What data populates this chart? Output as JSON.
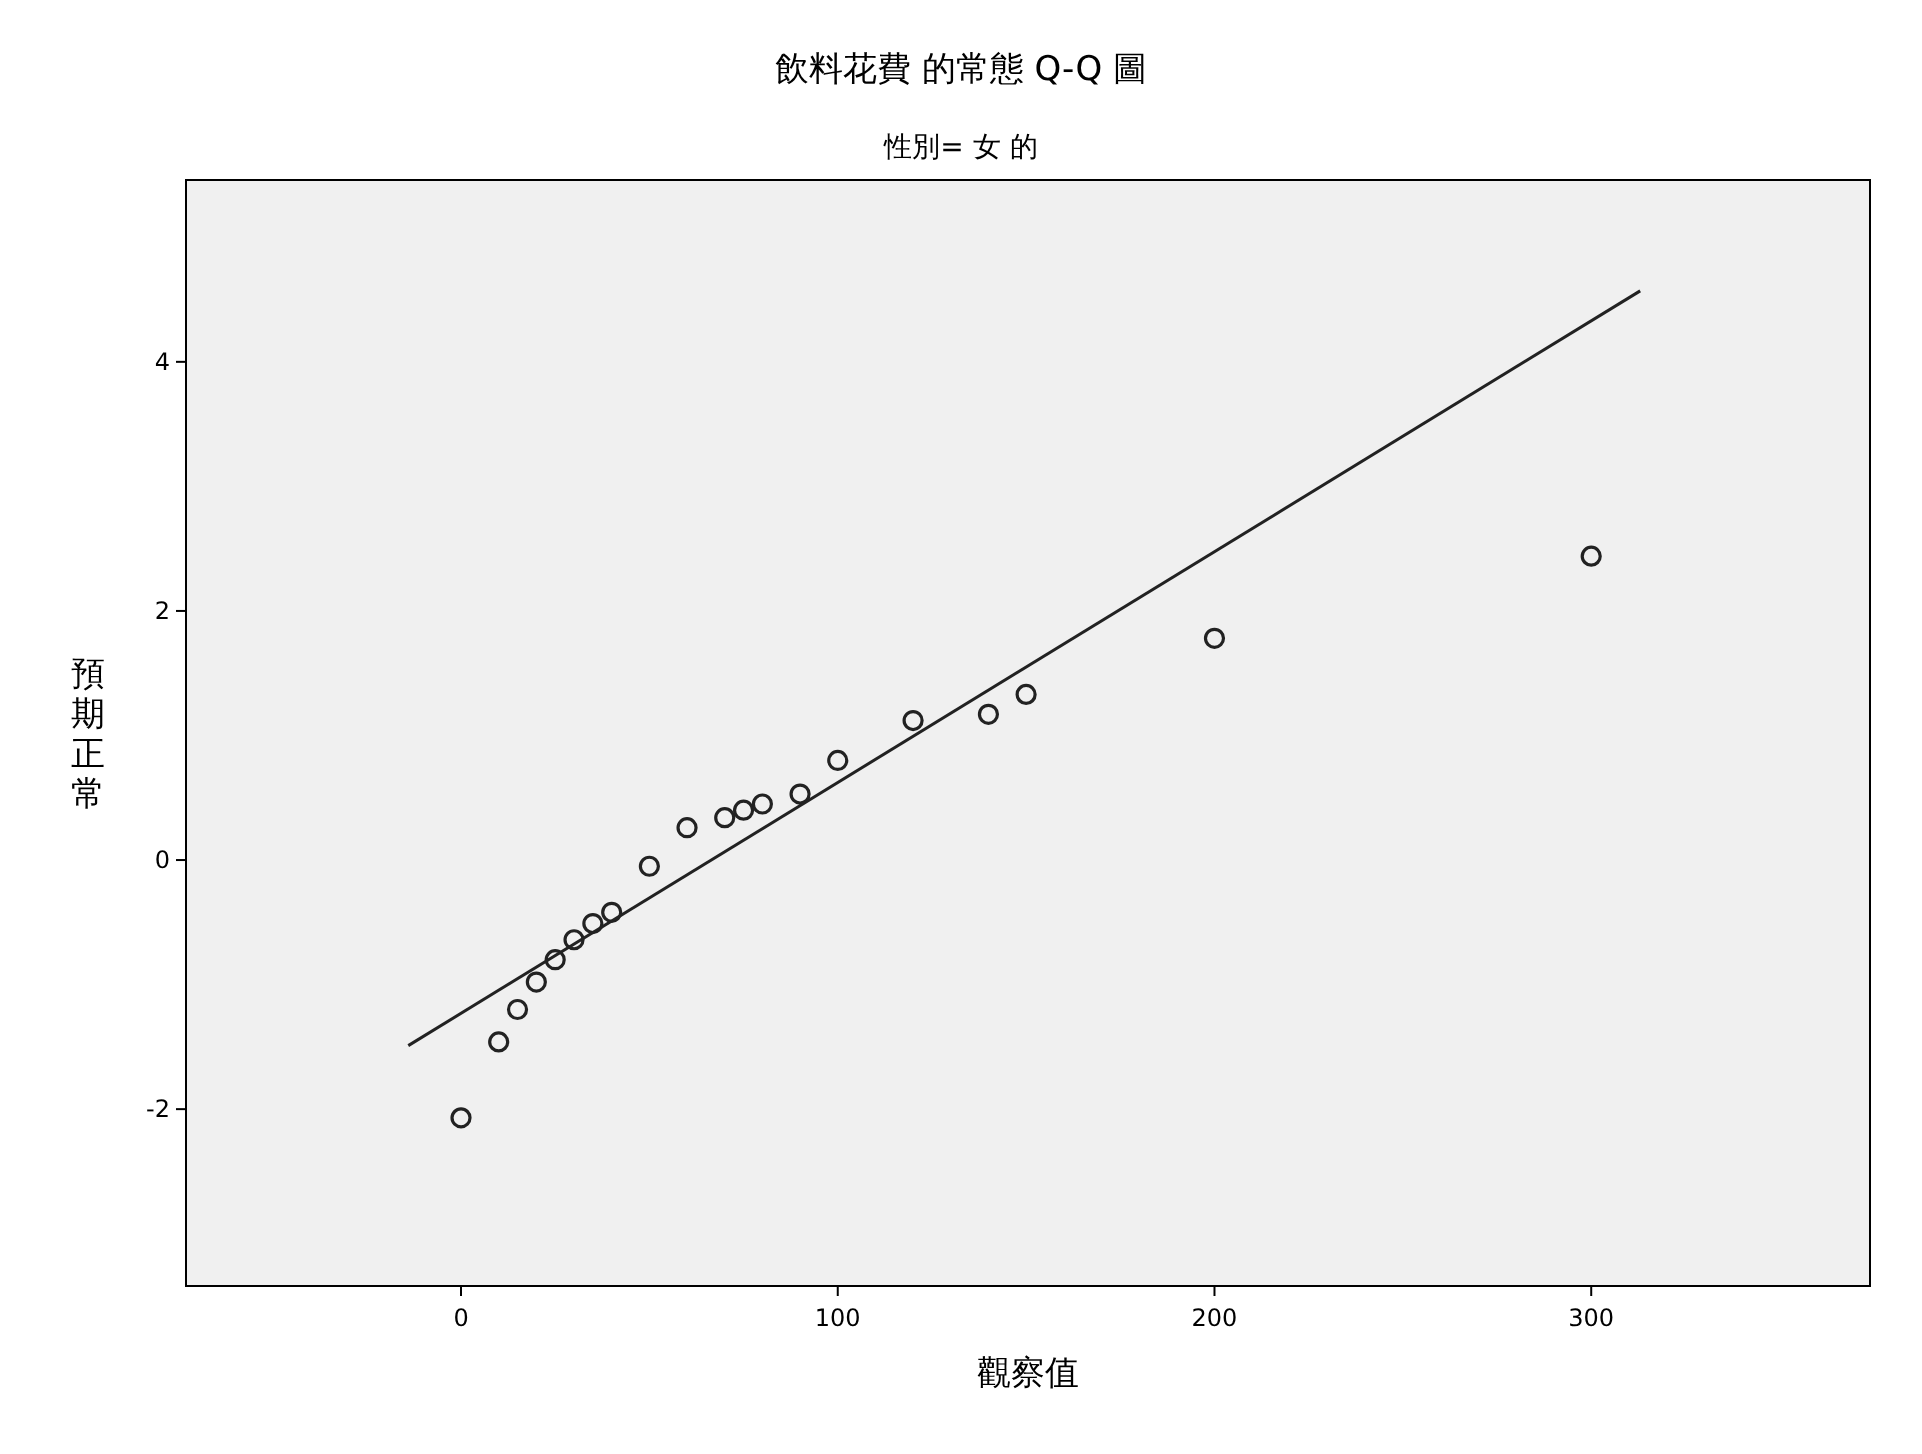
{
  "chart_data": {
    "type": "scatter",
    "title": "飲料花費 的常態 Q-Q 圖",
    "subtitle": "性別= 女 的",
    "xlabel": "觀察值",
    "ylabel": "預期正常",
    "xlim": [
      -73,
      374
    ],
    "ylim": [
      -3.42,
      5.46
    ],
    "xticks": [
      0,
      100,
      200,
      300
    ],
    "yticks": [
      -2,
      0,
      2,
      4
    ],
    "grid": false,
    "series": [
      {
        "type": "scatter",
        "color": "#222222",
        "marker": "circle",
        "x": [
          0,
          10,
          15,
          20,
          25,
          30,
          35,
          40,
          50,
          60,
          70,
          75,
          80,
          90,
          100,
          120,
          140,
          150,
          200,
          300
        ],
        "values": [
          -2.07,
          -1.46,
          -1.2,
          -0.98,
          -0.8,
          -0.64,
          -0.51,
          -0.42,
          -0.05,
          0.26,
          0.34,
          0.4,
          0.45,
          0.53,
          0.8,
          1.12,
          1.17,
          1.33,
          1.78,
          2.44
        ]
      },
      {
        "type": "line",
        "color": "#222222",
        "marker": "none",
        "line_style": "solid",
        "x": [
          -14,
          313
        ],
        "values": [
          -1.49,
          4.57
        ]
      }
    ]
  }
}
